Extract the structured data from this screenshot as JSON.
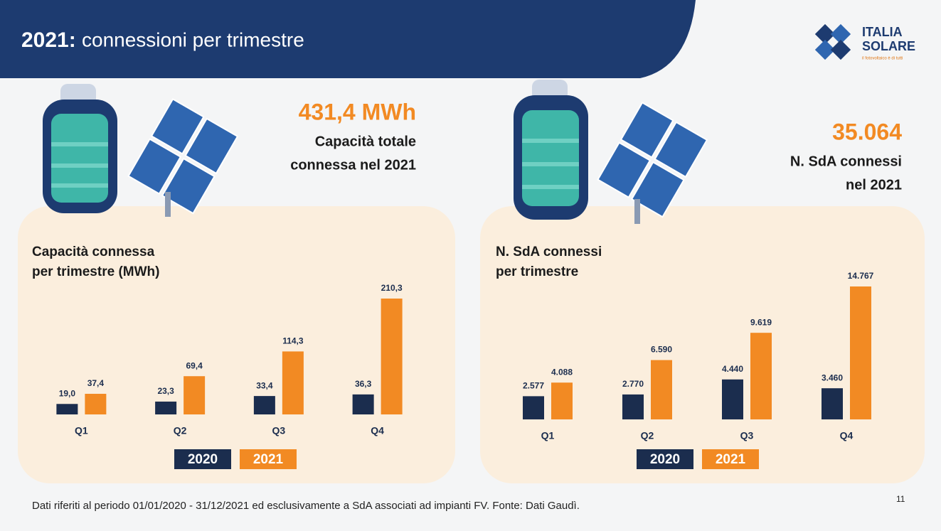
{
  "header": {
    "title_year": "2021:",
    "title": "connessioni per trimestre"
  },
  "logo": {
    "line1": "ITALIA",
    "line2": "SOLARE",
    "tagline": "il fotovoltaico è di tutti"
  },
  "highlights": [
    {
      "figure": "431,4 MWh",
      "caption": [
        "Capacità totale",
        "connessa nel 2021"
      ]
    },
    {
      "figure": "35.064",
      "caption": [
        "N. SdA connessi",
        "nel 2021"
      ]
    }
  ],
  "chart_data": [
    {
      "type": "bar",
      "title": [
        "Capacità connessa",
        "per trimestre (MWh)"
      ],
      "categories": [
        "Q1",
        "Q2",
        "Q3",
        "Q4"
      ],
      "series": [
        {
          "name": "2020",
          "color": "#1b2d4e",
          "values": [
            19.0,
            23.3,
            33.4,
            36.3
          ],
          "value_labels": [
            "19,0",
            "23,3",
            "33,4",
            "36,3"
          ]
        },
        {
          "name": "2021",
          "color": "#f28a23",
          "values": [
            37.4,
            69.4,
            114.3,
            210.3
          ],
          "value_labels": [
            "37,4",
            "69,4",
            "114,3",
            "210,3"
          ]
        }
      ]
    },
    {
      "type": "bar",
      "title": [
        "N. SdA connessi",
        "per trimestre"
      ],
      "categories": [
        "Q1",
        "Q2",
        "Q3",
        "Q4"
      ],
      "series": [
        {
          "name": "2020",
          "color": "#1b2d4e",
          "values": [
            2577,
            2770,
            4440,
            3460
          ],
          "value_labels": [
            "2.577",
            "2.770",
            "4.440",
            "3.460"
          ]
        },
        {
          "name": "2021",
          "color": "#f28a23",
          "values": [
            4088,
            6590,
            9619,
            14767
          ],
          "value_labels": [
            "4.088",
            "6.590",
            "9.619",
            "14.767"
          ]
        }
      ]
    }
  ],
  "footnote": "Dati riferiti al periodo 01/01/2020 - 31/12/2021 ed esclusivamente a SdA associati ad impianti FV. Fonte: Dati Gaudì.",
  "page_number": "11"
}
